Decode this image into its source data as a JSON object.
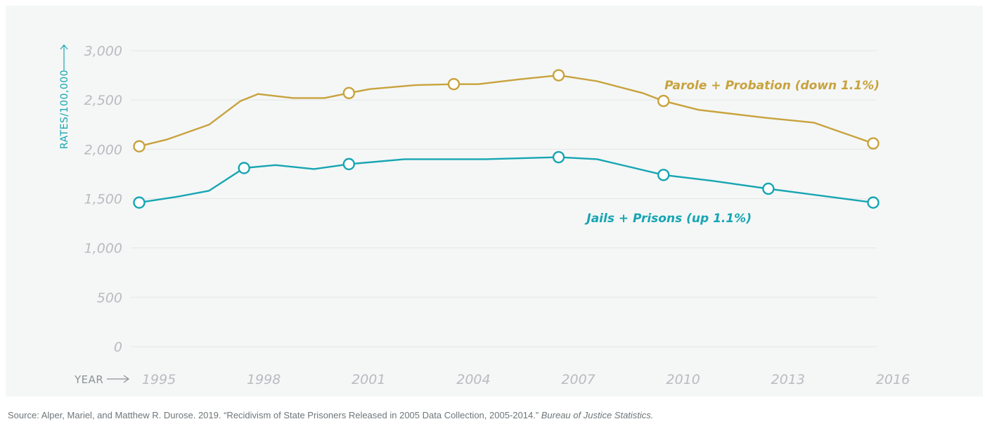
{
  "chart_data": {
    "type": "line",
    "ylabel": "RATES/100,000",
    "xlabel": "YEAR",
    "ylim": [
      0,
      3000
    ],
    "xlim": [
      1995,
      2016
    ],
    "y_ticks": [
      "3,000",
      "2,500",
      "2,000",
      "1,500",
      "1,000",
      "500",
      "0"
    ],
    "y_tick_values": [
      3000,
      2500,
      2000,
      1500,
      1000,
      500,
      0
    ],
    "x_ticks": [
      "1995",
      "1998",
      "2001",
      "2004",
      "2007",
      "2010",
      "2013",
      "2016"
    ],
    "x_tick_values": [
      1995,
      1998,
      2001,
      2004,
      2007,
      2010,
      2013,
      2016
    ],
    "grid": "horizontal",
    "series": [
      {
        "name": "Parole + Probation (down 1.1%)",
        "color": "#c9a23d",
        "x": [
          1995,
          1995.8,
          1997,
          1997.9,
          1998.4,
          1999.4,
          2000.3,
          2001,
          2001.6,
          2002.9,
          2004,
          2004.7,
          2005.9,
          2007,
          2008.1,
          2009.4,
          2010,
          2011,
          2012.9,
          2014.3,
          2016
        ],
        "values": [
          2030,
          2100,
          2250,
          2490,
          2560,
          2520,
          2520,
          2570,
          2610,
          2650,
          2660,
          2660,
          2710,
          2750,
          2690,
          2570,
          2490,
          2400,
          2320,
          2270,
          2060
        ],
        "markers_at": [
          1995,
          1998,
          2001,
          2004,
          2007,
          2010,
          2013,
          2016
        ]
      },
      {
        "name": "Jails + Prisons (up 1.1%)",
        "color": "#17a5b3",
        "x": [
          1995,
          1996.1,
          1997,
          1998,
          1998.9,
          2000,
          2001,
          2002.6,
          2004.9,
          2007,
          2008.1,
          2010,
          2011.4,
          2013,
          2016
        ],
        "values": [
          1460,
          1520,
          1580,
          1810,
          1840,
          1800,
          1850,
          1900,
          1900,
          1920,
          1900,
          1740,
          1680,
          1600,
          1460
        ],
        "markers_at": [
          1995,
          1998,
          2001,
          2004,
          2007,
          2010,
          2013,
          2016
        ]
      }
    ]
  },
  "source": {
    "text": "Source: Alper, Mariel, and Matthew R. Durose. 2019. “Recidivism of State Prisoners Released in 2005 Data Collection, 2005-2014.” ",
    "italic": "Bureau of Justice Statistics."
  }
}
